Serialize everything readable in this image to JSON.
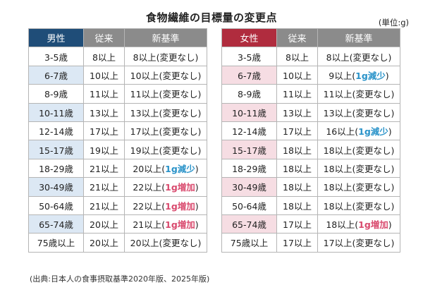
{
  "title": "食物繊維の目標量の変更点",
  "unit": "(単位:g)",
  "colors": {
    "male_header": "#1f4d78",
    "female_header": "#b02c3e",
    "decrease": "#2a93c9",
    "increase": "#d94a6e"
  },
  "male": {
    "headers": [
      "男性",
      "従来",
      "新基準"
    ],
    "rows": [
      {
        "age": "3-5歳",
        "old": "8以上",
        "new": "8以上(変更なし)",
        "hl": "",
        "kind": ""
      },
      {
        "age": "6-7歳",
        "old": "10以上",
        "new": "10以上(変更なし)",
        "hl": "",
        "kind": ""
      },
      {
        "age": "8-9歳",
        "old": "11以上",
        "new": "11以上(変更なし)",
        "hl": "",
        "kind": ""
      },
      {
        "age": "10-11歳",
        "old": "13以上",
        "new": "13以上(変更なし)",
        "hl": "",
        "kind": ""
      },
      {
        "age": "12-14歳",
        "old": "17以上",
        "new": "17以上(変更なし)",
        "hl": "",
        "kind": ""
      },
      {
        "age": "15-17歳",
        "old": "19以上",
        "new": "19以上(変更なし)",
        "hl": "",
        "kind": ""
      },
      {
        "age": "18-29歳",
        "old": "21以上",
        "new": "20以上(",
        "hl": "1g減少",
        "kind": "dec"
      },
      {
        "age": "30-49歳",
        "old": "21以上",
        "new": "22以上(",
        "hl": "1g増加",
        "kind": "inc"
      },
      {
        "age": "50-64歳",
        "old": "21以上",
        "new": "22以上(",
        "hl": "1g増加",
        "kind": "inc"
      },
      {
        "age": "65-74歳",
        "old": "20以上",
        "new": "21以上(",
        "hl": "1g増加",
        "kind": "inc"
      },
      {
        "age": "75歳以上",
        "old": "20以上",
        "new": "20以上(変更なし)",
        "hl": "",
        "kind": ""
      }
    ]
  },
  "female": {
    "headers": [
      "女性",
      "従来",
      "新基準"
    ],
    "rows": [
      {
        "age": "3-5歳",
        "old": "8以上",
        "new": "8以上(変更なし)",
        "hl": "",
        "kind": ""
      },
      {
        "age": "6-7歳",
        "old": "10以上",
        "new": "9以上(",
        "hl": "1g減少",
        "kind": "dec"
      },
      {
        "age": "8-9歳",
        "old": "11以上",
        "new": "11以上(変更なし)",
        "hl": "",
        "kind": ""
      },
      {
        "age": "10-11歳",
        "old": "13以上",
        "new": "13以上(変更なし)",
        "hl": "",
        "kind": ""
      },
      {
        "age": "12-14歳",
        "old": "17以上",
        "new": "16以上(",
        "hl": "1g減少",
        "kind": "dec"
      },
      {
        "age": "15-17歳",
        "old": "18以上",
        "new": "18以上(変更なし)",
        "hl": "",
        "kind": ""
      },
      {
        "age": "18-29歳",
        "old": "18以上",
        "new": "18以上(変更なし)",
        "hl": "",
        "kind": ""
      },
      {
        "age": "30-49歳",
        "old": "18以上",
        "new": "18以上(変更なし)",
        "hl": "",
        "kind": ""
      },
      {
        "age": "50-64歳",
        "old": "18以上",
        "new": "18以上(変更なし)",
        "hl": "",
        "kind": ""
      },
      {
        "age": "65-74歳",
        "old": "17以上",
        "new": "18以上(",
        "hl": "1g増加",
        "kind": "inc"
      },
      {
        "age": "75歳以上",
        "old": "17以上",
        "new": "17以上(変更なし)",
        "hl": "",
        "kind": ""
      }
    ]
  },
  "source": "(出典:日本人の食事摂取基準2020年版、2025年版)"
}
